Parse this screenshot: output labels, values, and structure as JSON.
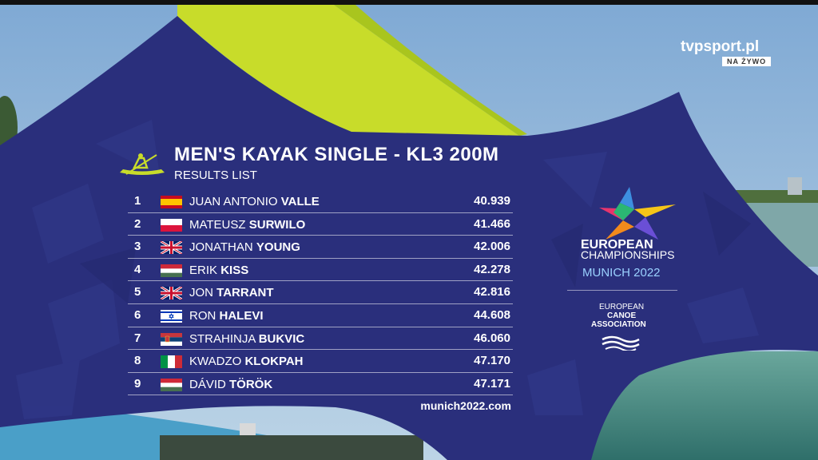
{
  "broadcaster": {
    "name": "tvpsport.pl",
    "badge": "NA ŻYWO"
  },
  "event": {
    "title": "MEN'S KAYAK SINGLE - KL3 200M",
    "subtitle": "RESULTS LIST"
  },
  "results": [
    {
      "rank": "1",
      "first": "JUAN ANTONIO",
      "last": "VALLE",
      "time": "40.939",
      "country": "ESP"
    },
    {
      "rank": "2",
      "first": "MATEUSZ",
      "last": "SURWILO",
      "time": "41.466",
      "country": "POL"
    },
    {
      "rank": "3",
      "first": "JONATHAN",
      "last": "YOUNG",
      "time": "42.006",
      "country": "GBR"
    },
    {
      "rank": "4",
      "first": "ERIK",
      "last": "KISS",
      "time": "42.278",
      "country": "HUN"
    },
    {
      "rank": "5",
      "first": "JON",
      "last": "TARRANT",
      "time": "42.816",
      "country": "GBR"
    },
    {
      "rank": "6",
      "first": "RON",
      "last": "HALEVI",
      "time": "44.608",
      "country": "ISR"
    },
    {
      "rank": "7",
      "first": "STRAHINJA",
      "last": "BUKVIC",
      "time": "46.060",
      "country": "SRB"
    },
    {
      "rank": "8",
      "first": "KWADZO",
      "last": "KLOKPAH",
      "time": "47.170",
      "country": "ITA"
    },
    {
      "rank": "9",
      "first": "DÁVID",
      "last": "TÖRÖK",
      "time": "47.171",
      "country": "HUN"
    }
  ],
  "footer": {
    "url": "munich2022.com"
  },
  "championship": {
    "line1": "EUROPEAN",
    "line2": "CHAMPIONSHIPS",
    "line3": "MUNICH 2022"
  },
  "association": {
    "line1": "EUROPEAN",
    "line2": "CANOE",
    "line3": "ASSOCIATION"
  },
  "colors": {
    "panel": "#2a2f7c",
    "accent_yellow": "#c8dc2a",
    "sky": "#8fb6d8",
    "water": "#4f8e86"
  }
}
